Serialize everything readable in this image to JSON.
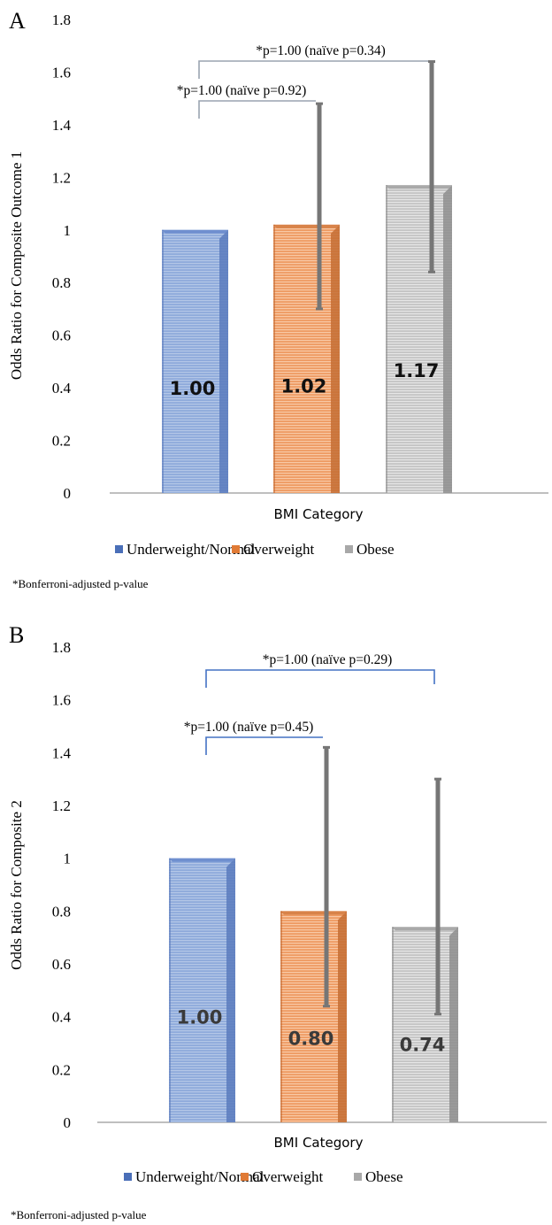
{
  "chart_data": [
    {
      "panel_label": "A",
      "type": "bar",
      "categories": [
        "Underweight/Normal",
        "Overweight",
        "Obese"
      ],
      "values": [
        1.0,
        1.02,
        1.17
      ],
      "value_labels": [
        "1.00",
        "1.02",
        "1.17"
      ],
      "error_bars": [
        null,
        {
          "low": 0.7,
          "high": 1.48
        },
        {
          "low": 0.84,
          "high": 1.64
        }
      ],
      "xlabel": "BMI Category",
      "ylabel": "Odds Ratio for Composite Outcome 1",
      "ylim": [
        0,
        1.8
      ],
      "yticks": [
        "0",
        "0.2",
        "0.4",
        "0.6",
        "0.8",
        "1",
        "1.2",
        "1.4",
        "1.6",
        "1.8"
      ],
      "legend": [
        "Underweight/Normal",
        "Overweight",
        "Obese"
      ],
      "legend_position": "bottom",
      "comparisons": [
        {
          "from": 0,
          "to": 1,
          "label": "*p=1.00 (naïve p=0.92)"
        },
        {
          "from": 0,
          "to": 2,
          "label": "*p=1.00 (naïve p=0.34)"
        }
      ],
      "footnote": "*Bonferroni-adjusted p-value",
      "grid": false
    },
    {
      "panel_label": "B",
      "type": "bar",
      "categories": [
        "Underweight/Normal",
        "Overweight",
        "Obese"
      ],
      "values": [
        1.0,
        0.8,
        0.74
      ],
      "value_labels": [
        "1.00",
        "0.80",
        "0.74"
      ],
      "error_bars": [
        null,
        {
          "low": 0.44,
          "high": 1.42
        },
        {
          "low": 0.41,
          "high": 1.3
        }
      ],
      "xlabel": "BMI Category",
      "ylabel": "Odds Ratio for Composite 2",
      "ylim": [
        0,
        1.8
      ],
      "yticks": [
        "0",
        "0.2",
        "0.4",
        "0.6",
        "0.8",
        "1",
        "1.2",
        "1.4",
        "1.6",
        "1.8"
      ],
      "legend": [
        "Underweight/Normal",
        "Overweight",
        "Obese"
      ],
      "legend_position": "bottom",
      "comparisons": [
        {
          "from": 0,
          "to": 1,
          "label": "*p=1.00 (naïve p=0.45)"
        },
        {
          "from": 0,
          "to": 2,
          "label": "*p=1.00 (naïve p=0.29)"
        }
      ],
      "footnote": "*Bonferroni-adjusted p-value",
      "grid": false
    }
  ],
  "colors": {
    "underweight_normal": "#8eaadb",
    "overweight": "#f0a878",
    "obese": "#cfcfcf",
    "error_bar": "#767676",
    "bracket_a": "#9aa4b0",
    "bracket_b": "#4472c4",
    "axis": "#bfbfbf"
  }
}
